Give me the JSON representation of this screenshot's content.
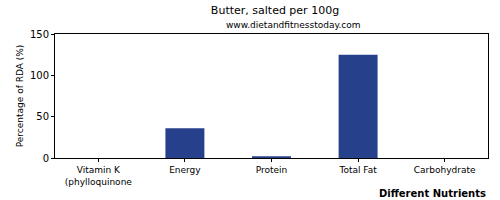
{
  "chart_data": {
    "type": "bar",
    "title": "Butter, salted per 100g",
    "subtitle": "www.dietandfitnesstoday.com",
    "x_label": "Different Nutrients",
    "y_label": "Percentage of RDA (%)",
    "categories": [
      "Vitamin K (phylloquinone",
      "Energy",
      "Protein",
      "Total Fat",
      "Carbohydrate"
    ],
    "values": [
      0,
      36,
      2,
      125,
      0
    ],
    "color": "#27408b",
    "ylim": [
      0,
      150
    ],
    "yticks": [
      0,
      50,
      100,
      150
    ],
    "grid": false
  }
}
